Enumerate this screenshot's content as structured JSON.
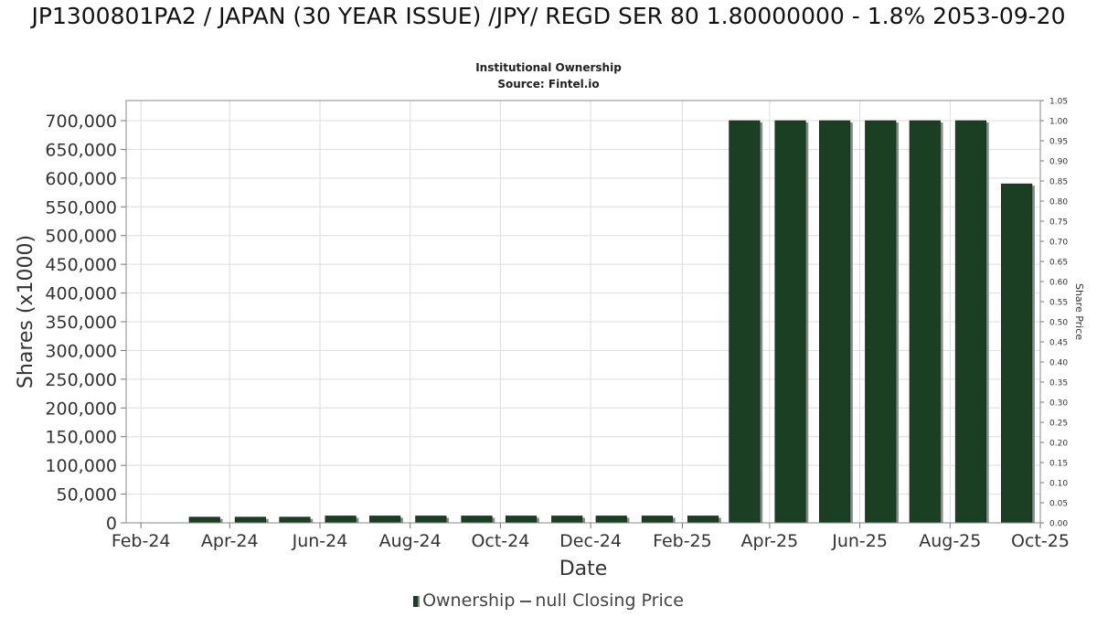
{
  "title": "JP1300801PA2 / JAPAN (30 YEAR ISSUE) /JPY/ REGD SER 80 1.80000000 - 1.8% 2053-09-20",
  "subtitle": "Institutional Ownership",
  "source": "Source: Fintel.io",
  "legend": {
    "ownership": "Ownership",
    "price": "null Closing Price"
  },
  "chart_data": {
    "type": "bar",
    "xlabel": "Date",
    "ylabel": "Shares (x1000)",
    "y2label": "Share Price",
    "x_tick_labels": [
      "Feb-24",
      "Apr-24",
      "Jun-24",
      "Aug-24",
      "Oct-24",
      "Dec-24",
      "Feb-25",
      "Apr-25",
      "Jun-25",
      "Aug-25",
      "Oct-25"
    ],
    "y_tick_labels": [
      "0",
      "50,000",
      "100,000",
      "150,000",
      "200,000",
      "250,000",
      "300,000",
      "350,000",
      "400,000",
      "450,000",
      "500,000",
      "550,000",
      "600,000",
      "650,000",
      "700,000"
    ],
    "y2_tick_labels": [
      "0.00",
      "0.05",
      "0.10",
      "0.15",
      "0.20",
      "0.25",
      "0.30",
      "0.35",
      "0.40",
      "0.45",
      "0.50",
      "0.55",
      "0.60",
      "0.65",
      "0.70",
      "0.75",
      "0.80",
      "0.85",
      "0.90",
      "0.95",
      "1.00",
      "1.05"
    ],
    "ylim": [
      0,
      735000
    ],
    "y2lim": [
      0,
      1.05
    ],
    "xlim": [
      "2024-01-22",
      "2025-10-01"
    ],
    "grid": true,
    "legend_position": "bottom",
    "colors": {
      "bar": "#1b3f22",
      "bar_shadow": "#8a8a8a",
      "grid": "#dddddd"
    },
    "series": [
      {
        "name": "Ownership",
        "x": [
          "2024-03-15",
          "2024-04-15",
          "2024-05-15",
          "2024-06-15",
          "2024-07-15",
          "2024-08-15",
          "2024-09-15",
          "2024-10-15",
          "2024-11-15",
          "2024-12-15",
          "2025-01-15",
          "2025-02-15",
          "2025-03-15",
          "2025-04-15",
          "2025-05-15",
          "2025-06-15",
          "2025-07-15",
          "2025-08-15",
          "2025-09-15"
        ],
        "values": [
          10000,
          10000,
          10000,
          12000,
          12000,
          12000,
          12000,
          12000,
          12000,
          12000,
          12000,
          12000,
          700000,
          700000,
          700000,
          700000,
          700000,
          700000,
          590000
        ]
      }
    ]
  }
}
